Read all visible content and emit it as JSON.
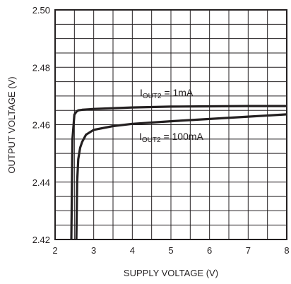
{
  "chart_data": {
    "type": "line",
    "xlabel": "SUPPLY VOLTAGE (V)",
    "ylabel": "OUTPUT VOLTAGE (V)",
    "xlim": [
      2,
      8
    ],
    "ylim": [
      2.42,
      2.5
    ],
    "grid": true,
    "x_ticks": [
      "2",
      "3",
      "4",
      "5",
      "6",
      "7",
      "8"
    ],
    "y_ticks": [
      "2.50",
      "2.48",
      "2.46",
      "2.44",
      "2.42"
    ],
    "series": [
      {
        "name_main": "I",
        "name_sub": "OUT2",
        "name_rest": " = 1mA",
        "color": "#231f20",
        "x": [
          2.42,
          2.45,
          2.5,
          2.55,
          2.6,
          2.7,
          3,
          4,
          5,
          6,
          7,
          8
        ],
        "y": [
          2.42,
          2.455,
          2.4635,
          2.4645,
          2.465,
          2.4652,
          2.4655,
          2.466,
          2.4663,
          2.4664,
          2.4665,
          2.4665
        ]
      },
      {
        "name_main": "I",
        "name_sub": "OUT2",
        "name_rest": " = 100mA",
        "color": "#231f20",
        "x": [
          2.55,
          2.57,
          2.6,
          2.65,
          2.7,
          2.8,
          3,
          3.5,
          4,
          5,
          6,
          7,
          8
        ],
        "y": [
          2.42,
          2.44,
          2.448,
          2.452,
          2.454,
          2.4565,
          2.4582,
          2.4595,
          2.4603,
          2.4612,
          2.462,
          2.4628,
          2.4636
        ]
      }
    ]
  }
}
